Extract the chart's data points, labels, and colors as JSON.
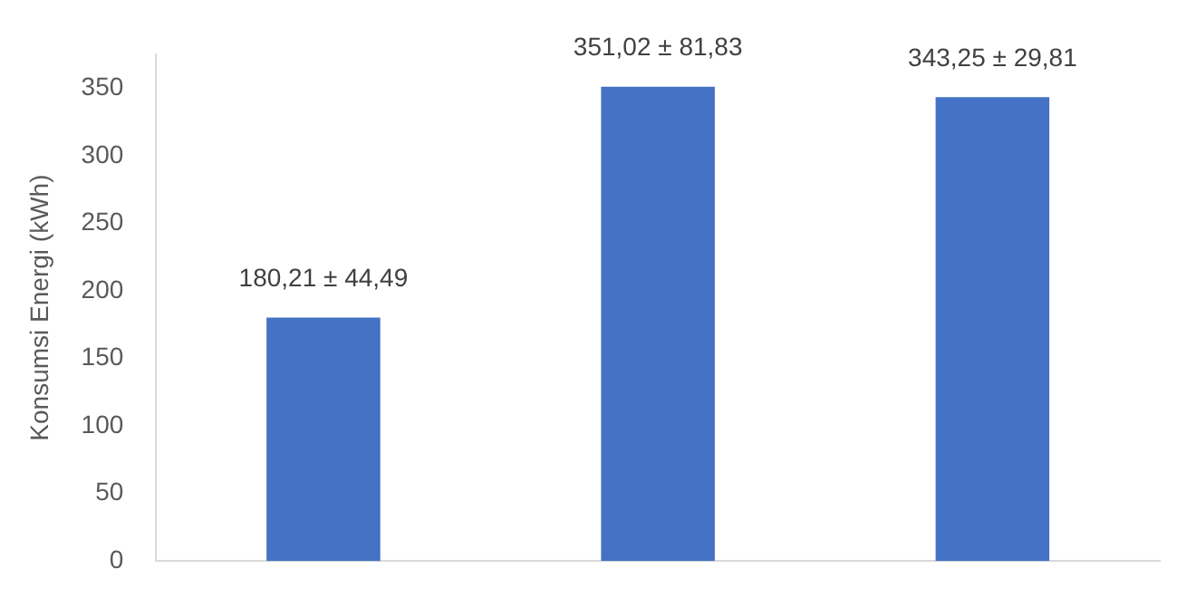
{
  "chart_data": {
    "type": "bar",
    "ylabel": "Konsumsi Energi (kWh)",
    "categories": [
      null,
      null,
      null
    ],
    "values": [
      180.21,
      351.02,
      343.25
    ],
    "value_labels": [
      "180,21 ± 44,49",
      "351,02 ± 81,83",
      "343,25 ± 29,81"
    ],
    "color": "#4472c4",
    "ylim": [
      0,
      375
    ],
    "yticks": [
      0,
      50,
      100,
      150,
      200,
      250,
      300,
      350
    ],
    "grid": false,
    "legend": false
  }
}
